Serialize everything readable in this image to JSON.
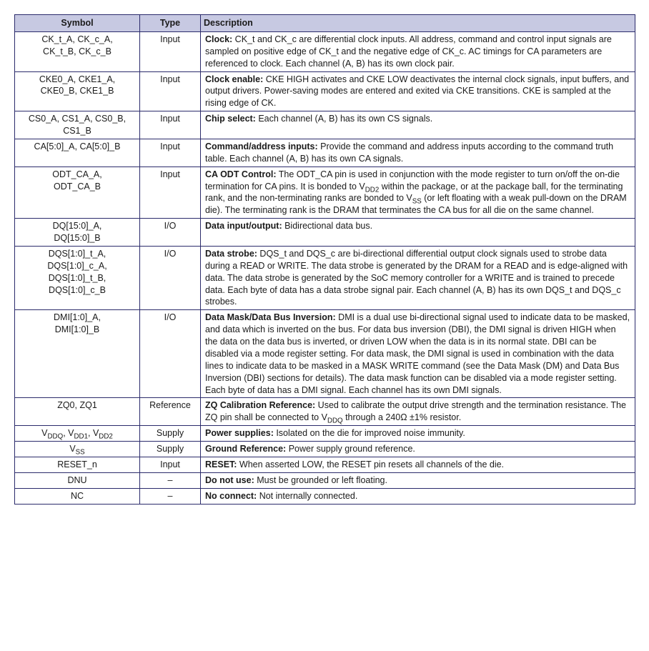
{
  "table": {
    "header": {
      "symbol": "Symbol",
      "type": "Type",
      "description": "Description"
    },
    "rows": [
      {
        "symbol_html": "CK_t_A, CK_c_A,<br>CK_t_B, CK_c_B",
        "type": "Input",
        "desc_title": "Clock:",
        "desc_body_html": " CK_t and CK_c are differential clock inputs. All address, command and control input signals are sampled on positive edge of CK_t and the negative edge of CK_c. AC timings for CA parameters are referenced to clock. Each channel (A, B) has its own clock pair."
      },
      {
        "symbol_html": "CKE0_A, CKE1_A,<br>CKE0_B, CKE1_B",
        "type": "Input",
        "desc_title": "Clock enable:",
        "desc_body_html": " CKE HIGH activates and CKE LOW deactivates the internal clock signals, input buffers, and output drivers. Power-saving modes are entered and exited via CKE transitions. CKE is sampled at the rising edge of CK."
      },
      {
        "symbol_html": "CS0_A, CS1_A, CS0_B,<br>CS1_B",
        "type": "Input",
        "desc_title": "Chip select:",
        "desc_body_html": " Each channel (A, B) has its own CS signals."
      },
      {
        "symbol_html": "CA[5:0]_A, CA[5:0]_B",
        "type": "Input",
        "desc_title": "Command/address inputs:",
        "desc_body_html": " Provide the command and address inputs according to the command truth table. Each channel (A, B) has its own CA signals."
      },
      {
        "symbol_html": "ODT_CA_A,<br>ODT_CA_B",
        "type": "Input",
        "desc_title": "CA ODT Control:",
        "desc_body_html": " The ODT_CA pin is used in conjunction with the mode register to turn on/off the on-die termination for CA pins. It is bonded to V<sub>DD2</sub> within the package, or at the package ball, for the terminating rank, and the non-terminating ranks are bonded to V<sub>SS</sub> (or left floating with a weak pull-down on the DRAM die). The terminating rank is the DRAM that terminates the CA bus for all die on the same channel."
      },
      {
        "symbol_html": "DQ[15:0]_A,<br>DQ[15:0]_B",
        "type": "I/O",
        "desc_title": "Data input/output:",
        "desc_body_html": " Bidirectional data bus."
      },
      {
        "symbol_html": "DQS[1:0]_t_A,<br>DQS[1:0]_c_A,<br>DQS[1:0]_t_B,<br>DQS[1:0]_c_B",
        "type": "I/O",
        "desc_title": "Data strobe:",
        "desc_body_html": " DQS_t and DQS_c are bi-directional differential output clock signals used to strobe data during a READ or WRITE. The data strobe is generated by the DRAM for a READ and is edge-aligned with data. The data strobe is generated by the SoC memory controller for a WRITE and is trained to precede data. Each byte of data has a data strobe signal pair. Each channel (A, B) has its own DQS_t and DQS_c strobes."
      },
      {
        "symbol_html": "DMI[1:0]_A,<br>DMI[1:0]_B",
        "type": "I/O",
        "desc_title": "Data Mask/Data Bus Inversion:",
        "desc_body_html": " DMI is a dual use bi-directional signal used to indicate data to be masked, and data which is inverted on the bus. For data bus inversion (DBI), the DMI signal is driven HIGH when the data on the data bus is inverted, or driven LOW when the data is in its normal state. DBI can be disabled via a mode register setting. For data mask, the DMI signal is used in combination with the data lines to indicate data to be masked in a MASK WRITE command (see the Data Mask (DM) and Data Bus Inversion (DBI) sections for details). The data mask function can be disabled via a mode register setting. Each byte of data has a DMI signal. Each channel has its own DMI signals."
      },
      {
        "symbol_html": "ZQ0, ZQ1",
        "type": "Reference",
        "desc_title": "ZQ Calibration Reference:",
        "desc_body_html": " Used to calibrate the output drive strength and the termination resistance. The ZQ pin shall be connected to V<sub>DDQ</sub> through a 240Ω ±1% resistor."
      },
      {
        "symbol_html": "V<sub>DDQ</sub>, V<sub>DD1</sub>, V<sub>DD2</sub>",
        "type": "Supply",
        "desc_title": "Power supplies:",
        "desc_body_html": " Isolated on the die for improved noise immunity."
      },
      {
        "symbol_html": "V<sub>SS</sub>",
        "type": "Supply",
        "desc_title": "Ground Reference:",
        "desc_body_html": " Power supply ground reference."
      },
      {
        "symbol_html": "RESET_n",
        "type": "Input",
        "desc_title": "RESET:",
        "desc_body_html": " When asserted LOW, the RESET pin resets all channels of the die."
      },
      {
        "symbol_html": "DNU",
        "type": "–",
        "desc_title": "Do not use:",
        "desc_body_html": " Must be grounded or left floating."
      },
      {
        "symbol_html": "NC",
        "type": "–",
        "desc_title": "No connect:",
        "desc_body_html": " Not internally connected."
      }
    ]
  }
}
